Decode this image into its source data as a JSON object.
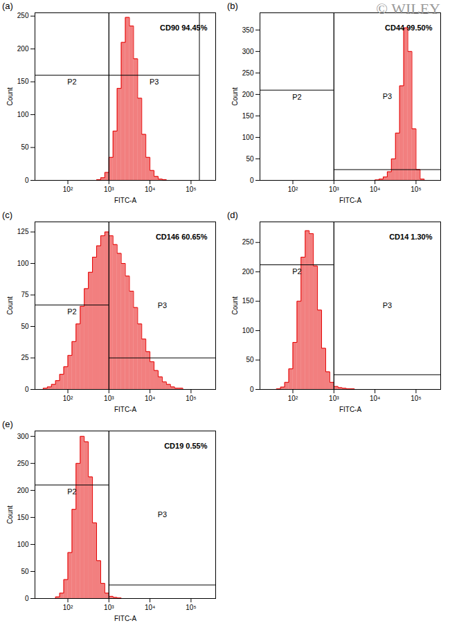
{
  "watermark": "© WILEY",
  "chart_data": [
    {
      "type": "histogram",
      "title": "(a)",
      "annotations": [
        "CD90 94.45%"
      ],
      "x_label": "FITC-A",
      "y_label": "Count",
      "log": "x",
      "color": "#e60000",
      "bins": [
        15.8,
        20,
        25.1,
        31.6,
        39.8,
        50.1,
        63.1,
        79.4,
        100,
        126,
        158,
        200,
        251,
        316,
        398,
        501,
        631,
        794,
        1000,
        1259,
        1585,
        1995,
        2512,
        3162,
        3981,
        5012,
        6310,
        7943,
        10000,
        12589,
        15849,
        19953,
        25119,
        31623,
        39811,
        50119,
        63096,
        79433,
        100000,
        125893,
        158489,
        199526,
        251189,
        316228,
        398107
      ],
      "values": [
        0,
        0,
        0,
        0,
        0,
        0,
        0,
        0,
        0,
        0,
        0,
        0,
        0,
        0,
        0,
        1,
        4,
        12,
        35,
        75,
        140,
        210,
        248,
        235,
        185,
        125,
        70,
        35,
        15,
        6,
        2,
        1,
        0,
        0,
        0,
        0,
        0,
        0,
        0,
        0,
        0,
        0,
        0,
        0
      ],
      "gates": [
        {
          "name": "P2",
          "x": [
            15.8,
            1000
          ],
          "level": 160
        },
        {
          "name": "P3",
          "x": [
            1000,
            160000
          ],
          "level": 160
        }
      ],
      "xlim": [
        15.8,
        398107
      ],
      "xticks": [
        {
          "value": 100,
          "label": "10²"
        },
        {
          "value": 1000,
          "label": "10³"
        },
        {
          "value": 10000,
          "label": "10⁴"
        },
        {
          "value": 100000,
          "label": "10⁵"
        }
      ],
      "ylim": [
        0,
        255
      ],
      "yticks": [
        0,
        50,
        100,
        150,
        200,
        250
      ]
    },
    {
      "type": "histogram",
      "title": "(b)",
      "annotations": [
        "CD44 99.50%"
      ],
      "x_label": "FITC-A",
      "y_label": "Count",
      "log": "x",
      "color": "#e60000",
      "bins": [
        15.8,
        20,
        25.1,
        31.6,
        39.8,
        50.1,
        63.1,
        79.4,
        100,
        126,
        158,
        200,
        251,
        316,
        398,
        501,
        631,
        794,
        1000,
        1259,
        1585,
        1995,
        2512,
        3162,
        3981,
        5012,
        6310,
        7943,
        10000,
        12589,
        15849,
        19953,
        25119,
        31623,
        39811,
        50119,
        63096,
        79433,
        100000,
        125893,
        158489,
        199526,
        251189,
        316228,
        398107
      ],
      "values": [
        0,
        0,
        0,
        0,
        0,
        0,
        0,
        0,
        0,
        0,
        0,
        0,
        0,
        0,
        0,
        0,
        0,
        0,
        0,
        0,
        0,
        0,
        0,
        0,
        0,
        0,
        0,
        0,
        1,
        3,
        8,
        20,
        50,
        110,
        220,
        355,
        300,
        120,
        25,
        3,
        0,
        0,
        0,
        0
      ],
      "gates": [
        {
          "name": "P2",
          "x": [
            15.8,
            1000
          ],
          "level": 210
        },
        {
          "name": "P3",
          "x": [
            1000,
            398107
          ],
          "level": 25
        }
      ],
      "xlim": [
        15.8,
        398107
      ],
      "xticks": [
        {
          "value": 100,
          "label": "10²"
        },
        {
          "value": 1000,
          "label": "10³"
        },
        {
          "value": 10000,
          "label": "10⁴"
        },
        {
          "value": 100000,
          "label": "10⁵"
        }
      ],
      "ylim": [
        0,
        390
      ],
      "yticks": [
        0,
        50,
        100,
        150,
        200,
        250,
        300,
        350
      ]
    },
    {
      "type": "histogram",
      "title": "(c)",
      "annotations": [
        "CD146 60.65%"
      ],
      "x_label": "FITC-A",
      "y_label": "Count",
      "log": "x",
      "color": "#e60000",
      "bins": [
        15.8,
        20,
        25.1,
        31.6,
        39.8,
        50.1,
        63.1,
        79.4,
        100,
        126,
        158,
        200,
        251,
        316,
        398,
        501,
        631,
        794,
        1000,
        1259,
        1585,
        1995,
        2512,
        3162,
        3981,
        5012,
        6310,
        7943,
        10000,
        12589,
        15849,
        19953,
        25119,
        31623,
        39811,
        50119,
        63096,
        79433,
        100000,
        125893,
        158489,
        199526,
        251189,
        316228,
        398107
      ],
      "values": [
        0,
        0,
        1,
        2,
        4,
        7,
        12,
        18,
        27,
        38,
        52,
        66,
        80,
        93,
        105,
        114,
        122,
        125,
        122,
        115,
        108,
        100,
        90,
        78,
        65,
        52,
        40,
        30,
        22,
        15,
        10,
        6,
        4,
        2,
        1,
        1,
        0,
        0,
        0,
        0,
        0,
        0,
        0,
        0
      ],
      "gates": [
        {
          "name": "P2",
          "x": [
            15.8,
            1000
          ],
          "level": 67
        },
        {
          "name": "P3",
          "x": [
            1000,
            398107
          ],
          "level": 25
        }
      ],
      "xlim": [
        15.8,
        398107
      ],
      "xticks": [
        {
          "value": 100,
          "label": "10²"
        },
        {
          "value": 1000,
          "label": "10³"
        },
        {
          "value": 10000,
          "label": "10⁴"
        },
        {
          "value": 100000,
          "label": "10⁵"
        }
      ],
      "ylim": [
        0,
        133
      ],
      "yticks": [
        0,
        25,
        50,
        75,
        100,
        125
      ]
    },
    {
      "type": "histogram",
      "title": "(d)",
      "annotations": [
        "CD14 1.30%"
      ],
      "x_label": "FITC-A",
      "y_label": "Count",
      "log": "x",
      "color": "#e60000",
      "bins": [
        15.8,
        20,
        25.1,
        31.6,
        39.8,
        50.1,
        63.1,
        79.4,
        100,
        126,
        158,
        200,
        251,
        316,
        398,
        501,
        631,
        794,
        1000,
        1259,
        1585,
        1995,
        2512,
        3162,
        3981,
        5012,
        6310,
        7943,
        10000,
        12589,
        15849,
        19953,
        25119,
        31623,
        39811,
        50119,
        63096,
        79433,
        100000,
        125893,
        158489,
        199526,
        251189,
        316228,
        398107
      ],
      "values": [
        0,
        0,
        0,
        0,
        1,
        4,
        12,
        35,
        80,
        150,
        225,
        270,
        265,
        210,
        135,
        70,
        30,
        12,
        5,
        3,
        2,
        1,
        1,
        0,
        0,
        0,
        0,
        0,
        0,
        0,
        0,
        0,
        0,
        0,
        0,
        0,
        0,
        0,
        0,
        0,
        0,
        0,
        0,
        0
      ],
      "gates": [
        {
          "name": "P2",
          "x": [
            15.8,
            1000
          ],
          "level": 212
        },
        {
          "name": "P3",
          "x": [
            1000,
            398107
          ],
          "level": 25
        }
      ],
      "xlim": [
        15.8,
        398107
      ],
      "xticks": [
        {
          "value": 100,
          "label": "10²"
        },
        {
          "value": 1000,
          "label": "10³"
        },
        {
          "value": 10000,
          "label": "10⁴"
        },
        {
          "value": 100000,
          "label": "10⁵"
        }
      ],
      "ylim": [
        0,
        285
      ],
      "yticks": [
        0,
        50,
        100,
        150,
        200,
        250
      ]
    },
    {
      "type": "histogram",
      "title": "(e)",
      "annotations": [
        "CD19 0.55%"
      ],
      "x_label": "FITC-A",
      "y_label": "Count",
      "log": "x",
      "color": "#e60000",
      "bins": [
        15.8,
        20,
        25.1,
        31.6,
        39.8,
        50.1,
        63.1,
        79.4,
        100,
        126,
        158,
        200,
        251,
        316,
        398,
        501,
        631,
        794,
        1000,
        1259,
        1585,
        1995,
        2512,
        3162,
        3981,
        5012,
        6310,
        7943,
        10000,
        12589,
        15849,
        19953,
        25119,
        31623,
        39811,
        50119,
        63096,
        79433,
        100000,
        125893,
        158489,
        199526,
        251189,
        316228,
        398107
      ],
      "values": [
        0,
        0,
        0,
        0,
        0,
        3,
        10,
        35,
        85,
        165,
        250,
        300,
        290,
        225,
        140,
        70,
        28,
        10,
        4,
        2,
        1,
        0,
        0,
        0,
        0,
        0,
        0,
        0,
        0,
        0,
        0,
        0,
        0,
        0,
        0,
        0,
        0,
        0,
        0,
        0,
        0,
        0,
        0,
        0
      ],
      "gates": [
        {
          "name": "P2",
          "x": [
            15.8,
            1000
          ],
          "level": 210
        },
        {
          "name": "P3",
          "x": [
            1000,
            398107
          ],
          "level": 25
        }
      ],
      "xlim": [
        15.8,
        398107
      ],
      "xticks": [
        {
          "value": 100,
          "label": "10²"
        },
        {
          "value": 1000,
          "label": "10³"
        },
        {
          "value": 10000,
          "label": "10⁴"
        },
        {
          "value": 100000,
          "label": "10⁵"
        }
      ],
      "ylim": [
        0,
        310
      ],
      "yticks": [
        0,
        50,
        100,
        150,
        200,
        250,
        300
      ]
    }
  ]
}
